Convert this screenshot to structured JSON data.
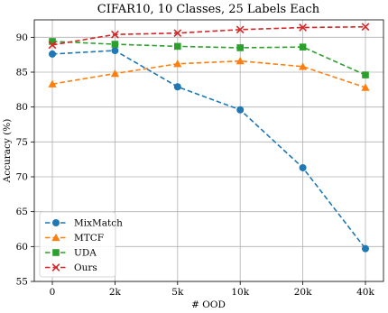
{
  "chart_data": {
    "type": "line",
    "title": "CIFAR10, 10 Classes, 25 Labels Each",
    "xlabel": "# OOD",
    "ylabel": "Accuracy (%)",
    "categories": [
      "0",
      "2k",
      "5k",
      "10k",
      "20k",
      "40k"
    ],
    "ylim": [
      55,
      92.5
    ],
    "yticks": [
      55,
      60,
      65,
      70,
      75,
      80,
      85,
      90
    ],
    "grid": true,
    "legend_position": "lower-left",
    "series": [
      {
        "name": "MixMatch",
        "color": "#1f77b4",
        "marker": "circle",
        "values": [
          87.6,
          88.1,
          82.9,
          79.6,
          71.3,
          59.7
        ]
      },
      {
        "name": "MTCF",
        "color": "#ff7f0e",
        "marker": "triangle",
        "values": [
          83.3,
          84.8,
          86.2,
          86.6,
          85.8,
          82.8
        ]
      },
      {
        "name": "UDA",
        "color": "#2ca02c",
        "marker": "square",
        "values": [
          89.4,
          89.0,
          88.7,
          88.5,
          88.6,
          84.6
        ]
      },
      {
        "name": "Ours",
        "color": "#d62728",
        "marker": "x",
        "values": [
          88.9,
          90.4,
          90.6,
          91.1,
          91.4,
          91.5
        ]
      }
    ]
  }
}
